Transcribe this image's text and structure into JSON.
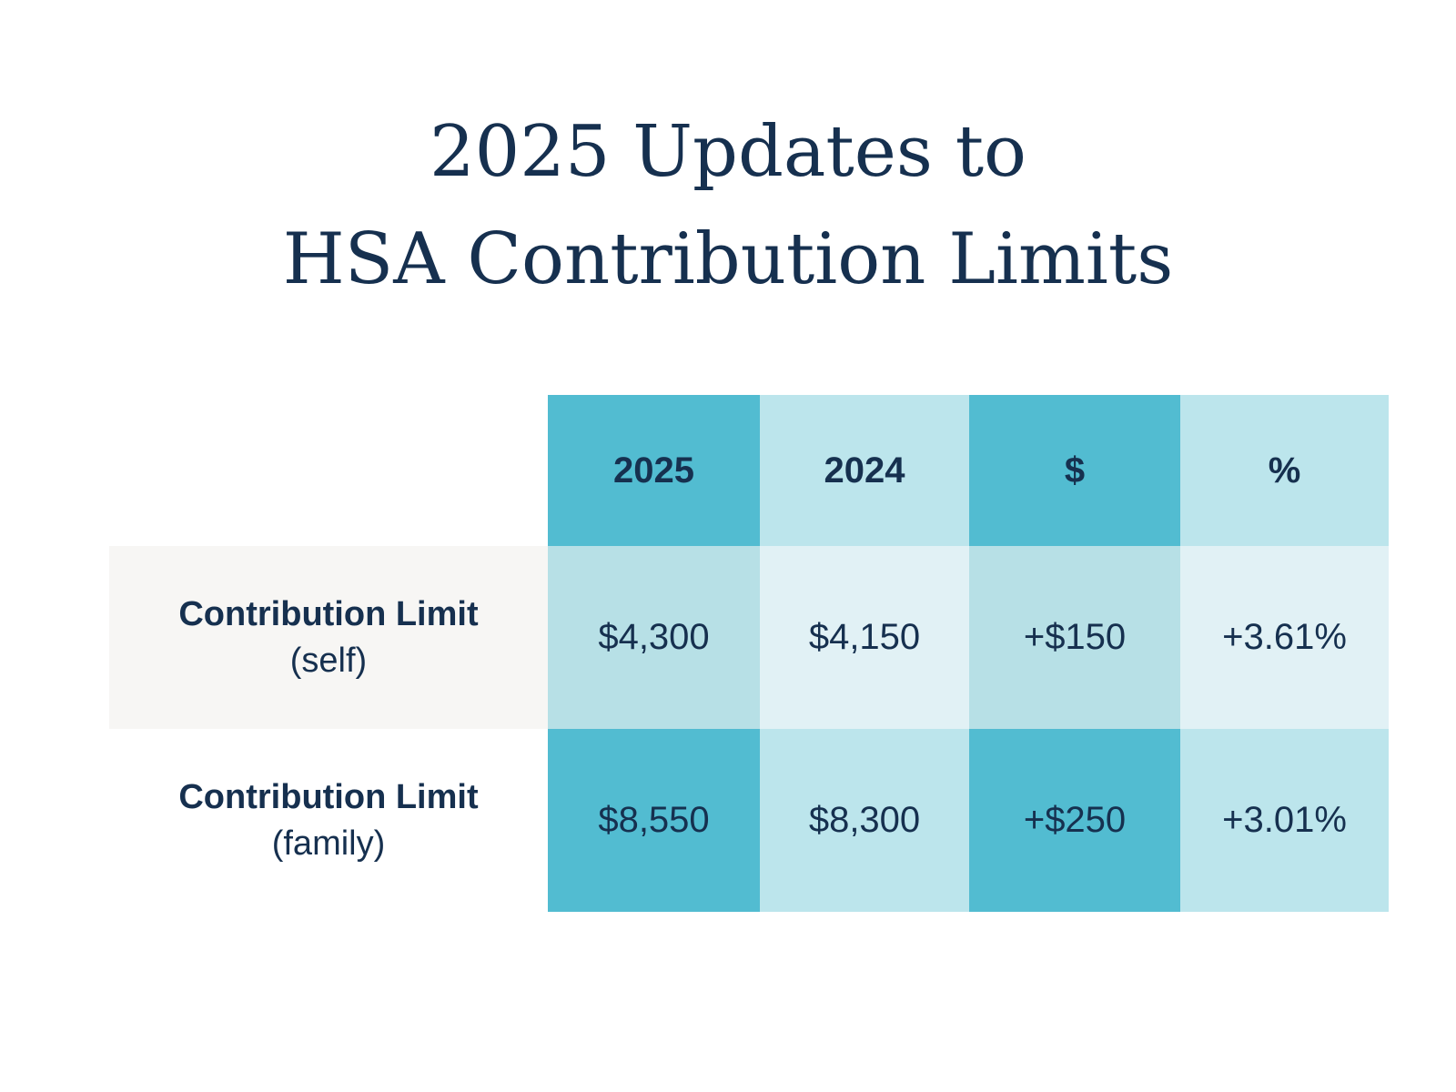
{
  "title": {
    "lines": [
      "2025 Updates to",
      "HSA Contribution Limits"
    ]
  },
  "table": {
    "header": [
      "2025",
      "2024",
      "$",
      "%"
    ],
    "rows": [
      {
        "label": "Contribution Limit",
        "sublabel": "(self)",
        "cells": [
          "$4,300",
          "$4,150",
          "+$150",
          "+3.61%"
        ]
      },
      {
        "label": "Contribution Limit",
        "sublabel": "(family)",
        "cells": [
          "$8,550",
          "$8,300",
          "+$250",
          "+3.01%"
        ]
      }
    ]
  }
}
